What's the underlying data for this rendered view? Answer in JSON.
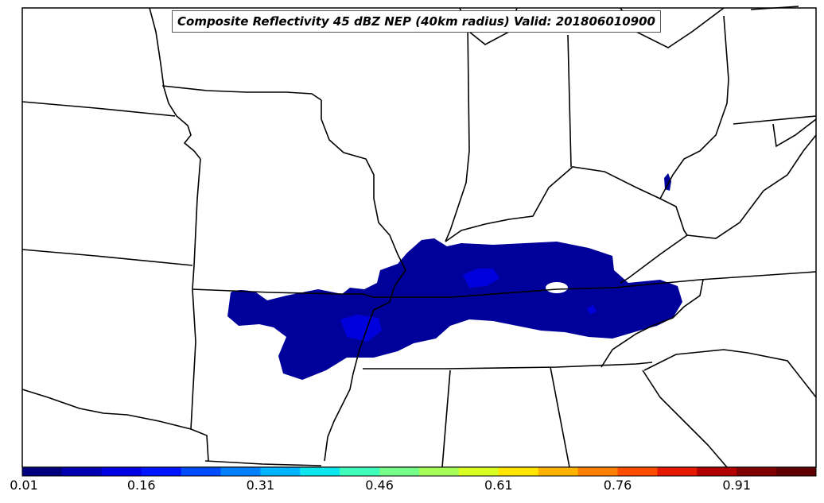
{
  "title": "Composite Reflectivity 45 dBZ NEP (40km radius) Valid: 201806010900",
  "colorbar": {
    "tick_labels": [
      "0.01",
      "0.16",
      "0.31",
      "0.46",
      "0.61",
      "0.76",
      "0.91"
    ],
    "colors": [
      "#00007f",
      "#0000b2",
      "#0000e5",
      "#0014ff",
      "#004cff",
      "#0080ff",
      "#00b4ff",
      "#0de6ee",
      "#40ffbd",
      "#73ff8a",
      "#a6ff57",
      "#d9ff24",
      "#ffe500",
      "#ffb300",
      "#ff8000",
      "#ff4e00",
      "#e51900",
      "#b20000",
      "#7f0000",
      "#5f0000"
    ]
  },
  "colors": {
    "probability_low": "#00009a",
    "probability_mid": "#0000dd",
    "state_lines": "#000000"
  }
}
